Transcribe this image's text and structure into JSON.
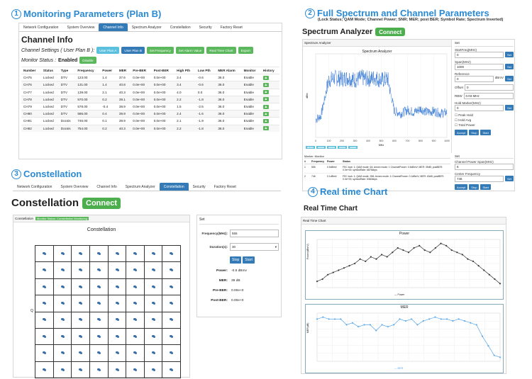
{
  "sec1": {
    "num": "1",
    "title": "Monitoring Parameters (Plan B)"
  },
  "sec2": {
    "num": "2",
    "title": "Full Spectrum and Channel Parameters",
    "subtitle": "(Lock Status; QAM Mode; Channel Power; SNR; MER; post BER; Symbol Rate; Spectrum Inverted)"
  },
  "sec3": {
    "num": "3",
    "title": "Constellation"
  },
  "sec4": {
    "num": "4",
    "title": "Real time Chart"
  },
  "nav1": [
    "Network Configuration",
    "System Overview",
    "Channel Info",
    "Spectrum Analyzer",
    "Constellation",
    "Security",
    "Factory Reset"
  ],
  "nav3": [
    "Network Configuration",
    "System Overview",
    "Channel Info",
    "Spectrum Analyzer",
    "Constellation",
    "Security",
    "Factory Reset"
  ],
  "channel": {
    "title": "Channel Info",
    "settings_label": "Channel Settings ( User Plan B ):",
    "buttons": [
      "User Plan A",
      "User Plan B",
      "Set Frequency",
      "Set Alarm Value",
      "Real Time Chart",
      "Export"
    ],
    "monitor_label": "Monitor Status :",
    "monitor_value": "Enabled",
    "disable_label": "Disable",
    "columns": [
      "Number",
      "Status",
      "Type",
      "Frequency",
      "Power",
      "MER",
      "Pre-BER",
      "Post-BER",
      "High Pth",
      "Low Pth",
      "MER Alarm",
      "Monitor",
      "History"
    ],
    "rows": [
      [
        "CH75",
        "Locked",
        "DTV",
        "123.00",
        "1.4",
        "37.6",
        "0.0e+00",
        "0.0e+00",
        "3.4",
        "-0.6",
        "36.0",
        "Enable"
      ],
      [
        "CH76",
        "Locked",
        "DTV",
        "131.00",
        "1.4",
        "40.8",
        "0.0e+00",
        "0.0e+00",
        "3.4",
        "-0.6",
        "36.0",
        "Enable"
      ],
      [
        "CH77",
        "Locked",
        "DTV",
        "139.00",
        "2.1",
        "40.3",
        "0.0e+00",
        "0.0e+00",
        "4.0",
        "0.0",
        "36.0",
        "Enable"
      ],
      [
        "CH78",
        "Locked",
        "DTV",
        "570.00",
        "0.2",
        "39.1",
        "0.0e+00",
        "0.0e+00",
        "2.2",
        "-1.8",
        "36.0",
        "Enable"
      ],
      [
        "CH79",
        "Locked",
        "DTV",
        "578.00",
        "-0.4",
        "38.9",
        "0.0e+00",
        "0.0e+00",
        "1.5",
        "-2.5",
        "36.0",
        "Enable"
      ],
      [
        "CH80",
        "Locked",
        "DTV",
        "586.00",
        "0.4",
        "39.9",
        "0.0e+00",
        "0.0e+00",
        "2.4",
        "-1.6",
        "36.0",
        "Enable"
      ],
      [
        "CH81",
        "Locked",
        "Docsis",
        "746.00",
        "0.1",
        "39.9",
        "0.0e+00",
        "0.0e+00",
        "2.1",
        "-1.9",
        "36.0",
        "Enable"
      ],
      [
        "CH82",
        "Locked",
        "Docsis",
        "754.00",
        "0.2",
        "40.3",
        "0.0e+00",
        "0.0e+00",
        "2.2",
        "-1.8",
        "36.0",
        "Enable"
      ]
    ]
  },
  "spectrum": {
    "title": "Spectrum Analyzer",
    "connect": "Connect",
    "panel_header": "Spectrum Analyzer",
    "chart_title": "Spectrum Analyzer",
    "x_label": "MHz",
    "y_label": "dBm",
    "x_ticks": [
      "0",
      "100",
      "200",
      "300",
      "400",
      "500",
      "600",
      "700",
      "800",
      "900",
      "1000"
    ],
    "set_header": "Set",
    "start_label": "StartFreq(MHz)",
    "start_value": "0",
    "span_label": "Span(MHz)",
    "span_value": "1000",
    "ref_label": "Reference",
    "ref_value": "0",
    "ref_unit": "dBmV",
    "offset_label": "Offset",
    "offset_value": "0",
    "rbw_label": "RBW",
    "rbw_value": "0.03 MHz",
    "marker_label": "Hold Marker(MHz)",
    "marker_value": "0",
    "chk": [
      "Peak Hold",
      "Hold Avg",
      "Total Power"
    ],
    "btns": [
      "Accept",
      "Stop",
      "Start"
    ],
    "ch_power_label": "Channel Power Span(MHz)",
    "ch_power_value": "6",
    "center_label": "Center Frequency",
    "center_value": "746",
    "status_header": "Marker: Monitor",
    "status_cols": [
      "#",
      "Frequency",
      "Power",
      "Status"
    ],
    "status_rows": [
      [
        "1",
        "555",
        "0.5dBmV",
        "FEC lock: 1; QAM mode: 64; Annex mode: 1 ChannelPower: 0.5dBmV; MER: 39dB; postBER: 0.0e+00; symbolRate: 6875kbps"
      ],
      [
        "2",
        "746",
        "0.1dBmV",
        "FEC lock: 1; QAM mode: 256; Annex mode: 1 ChannelPower: 0.1dBmV; MER: 40dB; postBER: 0.0e+00; symbolRate: 5360kbps"
      ]
    ]
  },
  "constellation": {
    "title": "Constellation",
    "connect": "Connect",
    "panel_header": "Constellation",
    "badge": "Monitor Status: Constellation Monitoring",
    "chart_title": "Constellation",
    "y_label": "Q",
    "set_header": "Set",
    "freq_label": "Frequency(MHz):",
    "freq_value": "555",
    "dur_label": "Duration(s):",
    "dur_value": "30",
    "stop": "Stop",
    "start": "Start",
    "power_label": "Power:",
    "power_value": "-0.6 dBmv",
    "mer_label": "MER:",
    "mer_value": "39 dB",
    "preber_label": "Pre-BER:",
    "preber_value": "0.00e+0",
    "postber_label": "Post-BER:",
    "postber_value": "0.00e+0"
  },
  "realtime": {
    "title": "Real Time Chart",
    "panel_header": "Real Time Chart",
    "power_title": "Power",
    "power_y": "Power(dBmV)",
    "power_legend": "Power",
    "mer_title": "MER",
    "mer_y": "MER(dB)",
    "mer_legend": "MER",
    "power_color": "#333333",
    "mer_color": "#5aa8e8"
  },
  "chart_data": [
    {
      "type": "line",
      "title": "Spectrum Analyzer",
      "xlabel": "MHz",
      "ylabel": "dBm",
      "xlim": [
        0,
        1000
      ],
      "x": [
        0,
        40,
        100,
        150,
        200,
        250,
        300,
        350,
        400,
        450,
        500,
        550,
        600,
        650,
        700,
        750,
        800,
        850,
        900,
        950,
        1000
      ],
      "values": [
        -55,
        -52,
        -22,
        -20,
        -21,
        -20,
        -22,
        -20,
        -21,
        -20,
        -22,
        -21,
        -48,
        -50,
        -47,
        -49,
        -46,
        -49,
        -48,
        -50,
        -49
      ]
    },
    {
      "type": "line",
      "title": "Power",
      "ylabel": "Power(dBmV)",
      "values": [
        0.2,
        0.3,
        0.5,
        0.6,
        0.7,
        0.8,
        0.9,
        1.0,
        1.2,
        1.1,
        1.3,
        1.2,
        1.4,
        1.3,
        1.5,
        1.7,
        1.6,
        1.5,
        1.7,
        1.8,
        1.6,
        1.5,
        1.7,
        1.9,
        1.8,
        1.6,
        1.5,
        1.4,
        1.2,
        1.1,
        0.9,
        0.7,
        0.5,
        0.3,
        0.1
      ],
      "series": [
        {
          "name": "Power"
        }
      ]
    },
    {
      "type": "line",
      "title": "MER",
      "ylabel": "MER(dB)",
      "values": [
        39.9,
        40.0,
        39.9,
        39.9,
        39.9,
        39.6,
        39.7,
        39.5,
        39.6,
        39.6,
        39.3,
        39.6,
        39.5,
        39.6,
        39.9,
        39.8,
        39.9,
        39.6,
        39.8,
        39.9,
        40.0,
        39.9,
        39.9,
        39.8,
        39.9,
        39.8,
        39.7,
        39.6,
        39.0,
        38.5,
        38.0,
        37.9
      ],
      "series": [
        {
          "name": "MER"
        }
      ]
    }
  ]
}
